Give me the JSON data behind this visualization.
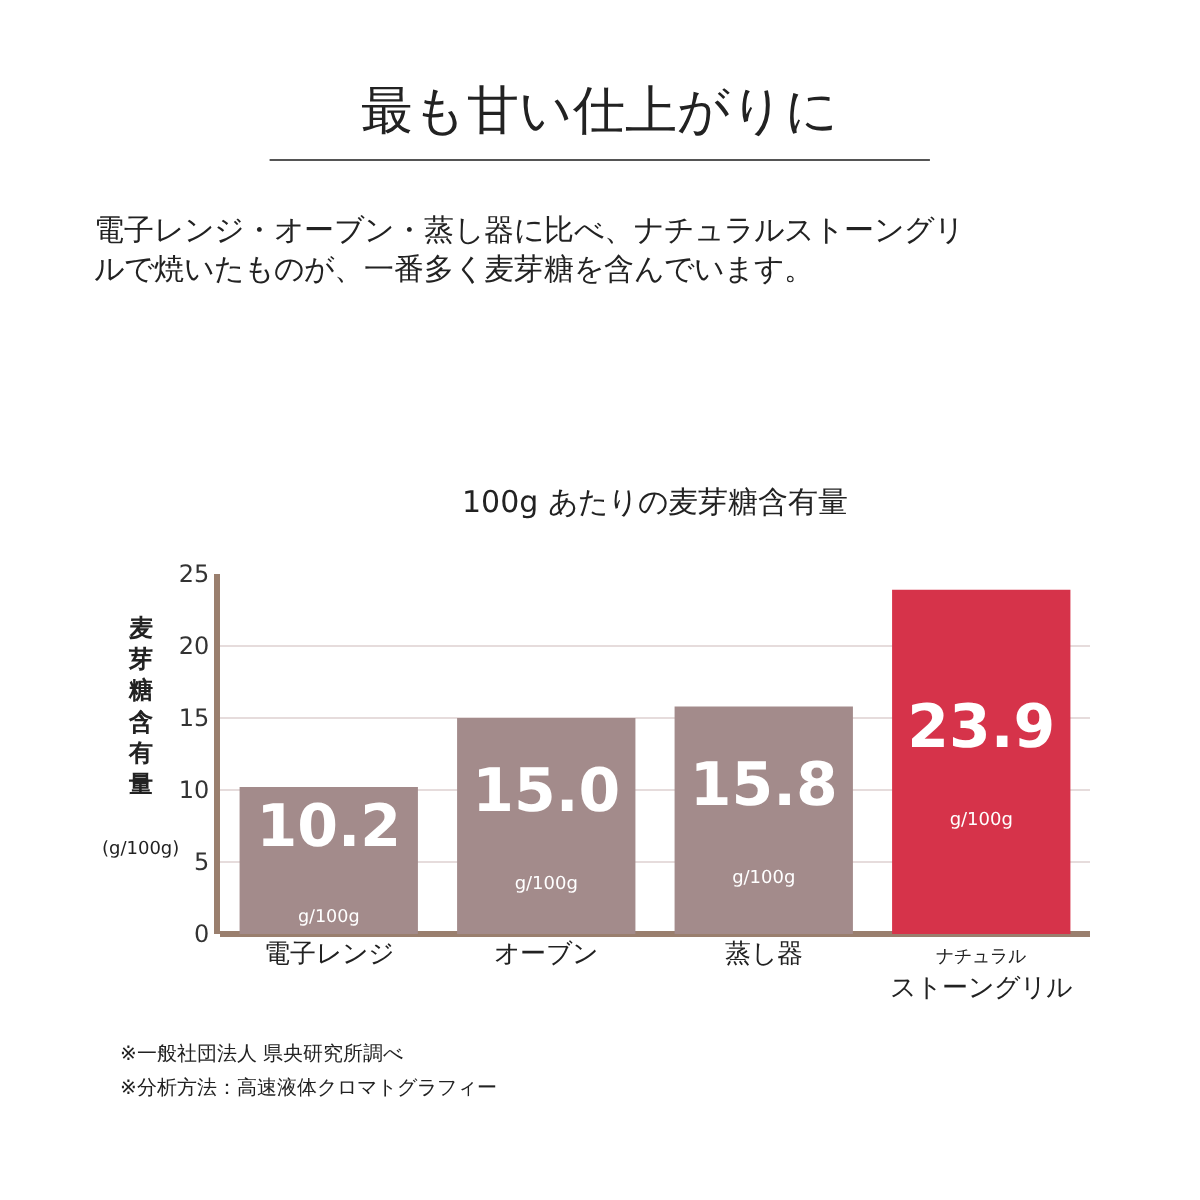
{
  "chart_data": {
    "type": "bar",
    "title": "最も甘い仕上がりに",
    "subtitle": "電子レンジ・オーブン・蒸し器に比べ、ナチュラルストーングリルで焼いたものが、一番多く麦芽糖を含んでいます。",
    "ylabel": "麦芽糖含有量\n(g/100g)",
    "categories": [
      "電子レンジ",
      "オーブン",
      "蒸し器",
      "ナチュラルストーングリル"
    ],
    "values": [
      10.2,
      15.0,
      15.8,
      23.9
    ],
    "colors": [
      "#a38b8b",
      "#a38b8b",
      "#a38b8b",
      "#d6334a"
    ],
    "value_labels": [
      "10.2\ng/100g",
      "15.0\ng/100g",
      "15.8\ng/100g",
      "23.9\ng/100g"
    ],
    "ylim": [
      0,
      25
    ],
    "yticks": [
      0,
      5,
      10,
      15,
      20,
      25
    ],
    "grid": "y",
    "annotations": [
      "100g あたりの麦芽糖含有量",
      "※一般社団法人 県央研究所調べ",
      "※分析方法：高速液体クロマトグラフィー"
    ]
  }
}
